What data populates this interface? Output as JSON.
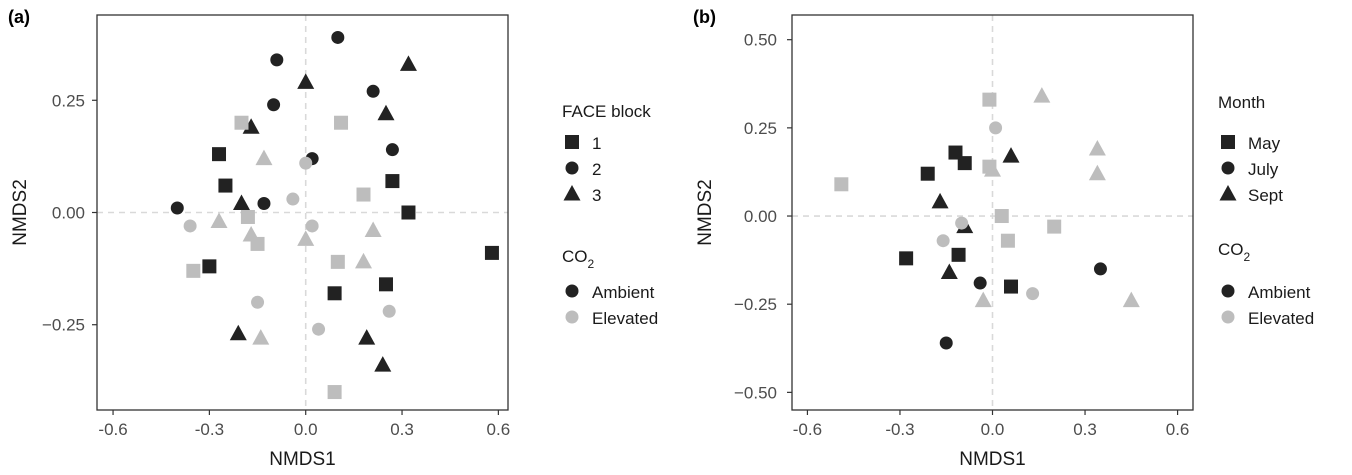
{
  "colors": {
    "ambient": "#222222",
    "elevated": "#bdbdbd",
    "refline": "#d9d9d9",
    "frame": "#333333"
  },
  "chart_data": [
    {
      "type": "scatter",
      "panel_label": "(a)",
      "xlabel": "NMDS1",
      "ylabel": "NMDS2",
      "xlim": [
        -0.65,
        0.63
      ],
      "ylim": [
        -0.44,
        0.44
      ],
      "xticks": [
        -0.6,
        -0.3,
        0.0,
        0.3,
        0.6
      ],
      "xtick_labels": [
        "-0.6",
        "-0.3",
        "0.0",
        "0.3",
        "0.6"
      ],
      "yticks": [
        -0.25,
        0.0,
        0.25
      ],
      "ytick_labels": [
        "−0.25",
        "0.00",
        "0.25"
      ],
      "shape_legend_title": "FACE block",
      "shape_legend": [
        {
          "label": "1",
          "shape": "square"
        },
        {
          "label": "2",
          "shape": "circle"
        },
        {
          "label": "3",
          "shape": "triangle"
        }
      ],
      "color_legend_title_main": "CO",
      "color_legend_title_sub": "2",
      "color_legend": [
        {
          "label": "Ambient",
          "group": "ambient"
        },
        {
          "label": "Elevated",
          "group": "elevated"
        }
      ],
      "points": [
        {
          "x": 0.1,
          "y": 0.39,
          "shape": "circle",
          "group": "ambient"
        },
        {
          "x": -0.09,
          "y": 0.34,
          "shape": "circle",
          "group": "ambient"
        },
        {
          "x": 0.32,
          "y": 0.33,
          "shape": "triangle",
          "group": "ambient"
        },
        {
          "x": 0.0,
          "y": 0.29,
          "shape": "triangle",
          "group": "ambient"
        },
        {
          "x": 0.21,
          "y": 0.27,
          "shape": "circle",
          "group": "ambient"
        },
        {
          "x": -0.1,
          "y": 0.24,
          "shape": "circle",
          "group": "ambient"
        },
        {
          "x": 0.25,
          "y": 0.22,
          "shape": "triangle",
          "group": "ambient"
        },
        {
          "x": -0.17,
          "y": 0.19,
          "shape": "triangle",
          "group": "ambient"
        },
        {
          "x": 0.27,
          "y": 0.14,
          "shape": "circle",
          "group": "ambient"
        },
        {
          "x": -0.27,
          "y": 0.13,
          "shape": "square",
          "group": "ambient"
        },
        {
          "x": 0.02,
          "y": 0.12,
          "shape": "circle",
          "group": "ambient"
        },
        {
          "x": 0.27,
          "y": 0.07,
          "shape": "square",
          "group": "ambient"
        },
        {
          "x": -0.25,
          "y": 0.06,
          "shape": "square",
          "group": "ambient"
        },
        {
          "x": -0.2,
          "y": 0.02,
          "shape": "triangle",
          "group": "ambient"
        },
        {
          "x": -0.13,
          "y": 0.02,
          "shape": "circle",
          "group": "ambient"
        },
        {
          "x": -0.4,
          "y": 0.01,
          "shape": "circle",
          "group": "ambient"
        },
        {
          "x": 0.32,
          "y": 0.0,
          "shape": "square",
          "group": "ambient"
        },
        {
          "x": 0.58,
          "y": -0.09,
          "shape": "square",
          "group": "ambient"
        },
        {
          "x": -0.3,
          "y": -0.12,
          "shape": "square",
          "group": "ambient"
        },
        {
          "x": 0.25,
          "y": -0.16,
          "shape": "square",
          "group": "ambient"
        },
        {
          "x": 0.09,
          "y": -0.18,
          "shape": "square",
          "group": "ambient"
        },
        {
          "x": -0.21,
          "y": -0.27,
          "shape": "triangle",
          "group": "ambient"
        },
        {
          "x": 0.19,
          "y": -0.28,
          "shape": "triangle",
          "group": "ambient"
        },
        {
          "x": 0.24,
          "y": -0.34,
          "shape": "triangle",
          "group": "ambient"
        },
        {
          "x": -0.2,
          "y": 0.2,
          "shape": "square",
          "group": "elevated"
        },
        {
          "x": 0.11,
          "y": 0.2,
          "shape": "square",
          "group": "elevated"
        },
        {
          "x": -0.13,
          "y": 0.12,
          "shape": "triangle",
          "group": "elevated"
        },
        {
          "x": 0.0,
          "y": 0.11,
          "shape": "circle",
          "group": "elevated"
        },
        {
          "x": 0.18,
          "y": 0.04,
          "shape": "square",
          "group": "elevated"
        },
        {
          "x": -0.04,
          "y": 0.03,
          "shape": "circle",
          "group": "elevated"
        },
        {
          "x": -0.18,
          "y": -0.01,
          "shape": "square",
          "group": "elevated"
        },
        {
          "x": -0.27,
          "y": -0.02,
          "shape": "triangle",
          "group": "elevated"
        },
        {
          "x": -0.36,
          "y": -0.03,
          "shape": "circle",
          "group": "elevated"
        },
        {
          "x": 0.02,
          "y": -0.03,
          "shape": "circle",
          "group": "elevated"
        },
        {
          "x": -0.17,
          "y": -0.05,
          "shape": "triangle",
          "group": "elevated"
        },
        {
          "x": 0.21,
          "y": -0.04,
          "shape": "triangle",
          "group": "elevated"
        },
        {
          "x": -0.15,
          "y": -0.07,
          "shape": "square",
          "group": "elevated"
        },
        {
          "x": 0.0,
          "y": -0.06,
          "shape": "triangle",
          "group": "elevated"
        },
        {
          "x": 0.1,
          "y": -0.11,
          "shape": "square",
          "group": "elevated"
        },
        {
          "x": 0.18,
          "y": -0.11,
          "shape": "triangle",
          "group": "elevated"
        },
        {
          "x": -0.35,
          "y": -0.13,
          "shape": "square",
          "group": "elevated"
        },
        {
          "x": -0.15,
          "y": -0.2,
          "shape": "circle",
          "group": "elevated"
        },
        {
          "x": 0.26,
          "y": -0.22,
          "shape": "circle",
          "group": "elevated"
        },
        {
          "x": 0.04,
          "y": -0.26,
          "shape": "circle",
          "group": "elevated"
        },
        {
          "x": -0.14,
          "y": -0.28,
          "shape": "triangle",
          "group": "elevated"
        },
        {
          "x": 0.09,
          "y": -0.4,
          "shape": "square",
          "group": "elevated"
        }
      ]
    },
    {
      "type": "scatter",
      "panel_label": "(b)",
      "xlabel": "NMDS1",
      "ylabel": "NMDS2",
      "xlim": [
        -0.65,
        0.65
      ],
      "ylim": [
        -0.55,
        0.57
      ],
      "xticks": [
        -0.6,
        -0.3,
        0.0,
        0.3,
        0.6
      ],
      "xtick_labels": [
        "-0.6",
        "-0.3",
        "0.0",
        "0.3",
        "0.6"
      ],
      "yticks": [
        -0.5,
        -0.25,
        0.0,
        0.25,
        0.5
      ],
      "ytick_labels": [
        "−0.50",
        "−0.25",
        "0.00",
        "0.25",
        "0.50"
      ],
      "shape_legend_title": "Month",
      "shape_legend": [
        {
          "label": "May",
          "shape": "square"
        },
        {
          "label": "July",
          "shape": "circle"
        },
        {
          "label": "Sept",
          "shape": "triangle"
        }
      ],
      "color_legend_title_main": "CO",
      "color_legend_title_sub": "2",
      "color_legend": [
        {
          "label": "Ambient",
          "group": "ambient"
        },
        {
          "label": "Elevated",
          "group": "elevated"
        }
      ],
      "points": [
        {
          "x": -0.12,
          "y": 0.18,
          "shape": "square",
          "group": "ambient"
        },
        {
          "x": 0.06,
          "y": 0.17,
          "shape": "triangle",
          "group": "ambient"
        },
        {
          "x": -0.09,
          "y": 0.15,
          "shape": "square",
          "group": "ambient"
        },
        {
          "x": -0.21,
          "y": 0.12,
          "shape": "square",
          "group": "ambient"
        },
        {
          "x": -0.17,
          "y": 0.04,
          "shape": "triangle",
          "group": "ambient"
        },
        {
          "x": -0.09,
          "y": -0.03,
          "shape": "triangle",
          "group": "ambient"
        },
        {
          "x": -0.28,
          "y": -0.12,
          "shape": "square",
          "group": "ambient"
        },
        {
          "x": -0.11,
          "y": -0.11,
          "shape": "square",
          "group": "ambient"
        },
        {
          "x": -0.14,
          "y": -0.16,
          "shape": "triangle",
          "group": "ambient"
        },
        {
          "x": 0.35,
          "y": -0.15,
          "shape": "circle",
          "group": "ambient"
        },
        {
          "x": -0.04,
          "y": -0.19,
          "shape": "circle",
          "group": "ambient"
        },
        {
          "x": 0.06,
          "y": -0.2,
          "shape": "square",
          "group": "ambient"
        },
        {
          "x": -0.15,
          "y": -0.36,
          "shape": "circle",
          "group": "ambient"
        },
        {
          "x": 0.16,
          "y": 0.34,
          "shape": "triangle",
          "group": "elevated"
        },
        {
          "x": -0.01,
          "y": 0.33,
          "shape": "square",
          "group": "elevated"
        },
        {
          "x": 0.01,
          "y": 0.25,
          "shape": "circle",
          "group": "elevated"
        },
        {
          "x": 0.34,
          "y": 0.19,
          "shape": "triangle",
          "group": "elevated"
        },
        {
          "x": -0.01,
          "y": 0.14,
          "shape": "square",
          "group": "elevated"
        },
        {
          "x": 0.0,
          "y": 0.13,
          "shape": "triangle",
          "group": "elevated"
        },
        {
          "x": 0.34,
          "y": 0.12,
          "shape": "triangle",
          "group": "elevated"
        },
        {
          "x": -0.49,
          "y": 0.09,
          "shape": "square",
          "group": "elevated"
        },
        {
          "x": 0.03,
          "y": 0.0,
          "shape": "square",
          "group": "elevated"
        },
        {
          "x": 0.2,
          "y": -0.03,
          "shape": "square",
          "group": "elevated"
        },
        {
          "x": -0.1,
          "y": -0.02,
          "shape": "circle",
          "group": "elevated"
        },
        {
          "x": -0.16,
          "y": -0.07,
          "shape": "circle",
          "group": "elevated"
        },
        {
          "x": 0.05,
          "y": -0.07,
          "shape": "square",
          "group": "elevated"
        },
        {
          "x": 0.13,
          "y": -0.22,
          "shape": "circle",
          "group": "elevated"
        },
        {
          "x": -0.03,
          "y": -0.24,
          "shape": "triangle",
          "group": "elevated"
        },
        {
          "x": 0.45,
          "y": -0.24,
          "shape": "triangle",
          "group": "elevated"
        }
      ]
    }
  ]
}
